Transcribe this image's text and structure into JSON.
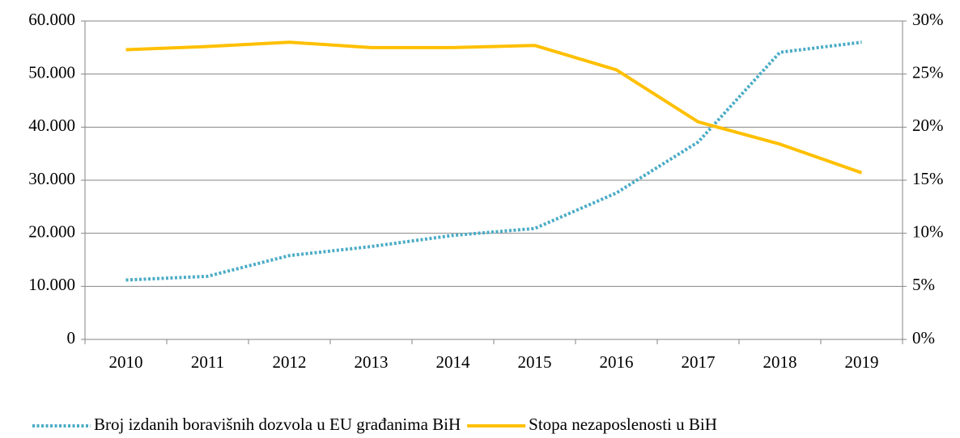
{
  "chart_data": {
    "type": "line",
    "categories": [
      "2010",
      "2011",
      "2012",
      "2013",
      "2014",
      "2015",
      "2016",
      "2017",
      "2018",
      "2019"
    ],
    "series": [
      {
        "name": "Broj izdanih boravišnih dozvola u EU građanima BiH",
        "color": "#4bacc6",
        "dash": "dotted",
        "values": [
          11200,
          11900,
          15800,
          17500,
          19600,
          20900,
          27600,
          37200,
          54100,
          56000
        ]
      },
      {
        "name": "Stopa nezaposlenosti u BiH",
        "color": "#ffc000",
        "axis": "y2",
        "values": [
          27.3,
          27.6,
          28.0,
          27.5,
          27.5,
          27.7,
          25.4,
          20.5,
          18.4,
          15.7
        ]
      }
    ],
    "ylim": [
      0,
      60000
    ],
    "yticks": [
      0,
      {
        "value": 10000,
        "label": "10.000"
      },
      {
        "value": 20000,
        "label": "20.000"
      },
      {
        "value": 30000,
        "label": "30.000"
      },
      {
        "value": 40000,
        "label": "40.000"
      },
      {
        "value": 50000,
        "label": "50.000"
      },
      {
        "value": 60000,
        "label": "60.000"
      }
    ],
    "y2lim": [
      0,
      30
    ],
    "y2ticks": [
      {
        "value": 0,
        "label": "0%"
      },
      {
        "value": 5,
        "label": "5%"
      },
      {
        "value": 10,
        "label": "10%"
      },
      {
        "value": 15,
        "label": "15%"
      },
      {
        "value": 20,
        "label": "20%"
      },
      {
        "value": 25,
        "label": "25%"
      },
      {
        "value": 30,
        "label": "30%"
      }
    ],
    "grid": true,
    "legend": "bottom"
  }
}
